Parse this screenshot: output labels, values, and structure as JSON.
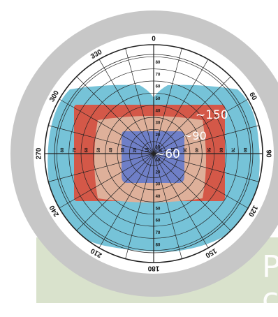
{
  "diagram": {
    "angle_labels": [
      "0",
      "60",
      "90",
      "120",
      "150",
      "180",
      "210",
      "240",
      "270",
      "300",
      "330"
    ],
    "angles_deg": [
      0,
      60,
      90,
      120,
      150,
      180,
      210,
      240,
      270,
      300,
      330
    ],
    "radial_labels": [
      "80",
      "70",
      "60",
      "50",
      "40",
      "30",
      "20",
      "10"
    ],
    "regions": [
      {
        "label": "",
        "color": "#76c3d8"
      },
      {
        "label": "~150",
        "color": "#d45848"
      },
      {
        "label": "~90",
        "color": "#deb09a"
      },
      {
        "label": "~60",
        "color": "#6f7fc7"
      }
    ],
    "colors": {
      "ring": "#c7c7c7",
      "grid": "#222222",
      "panel": "#d9e2cc"
    }
  },
  "panel": {
    "text": "P\nc"
  }
}
